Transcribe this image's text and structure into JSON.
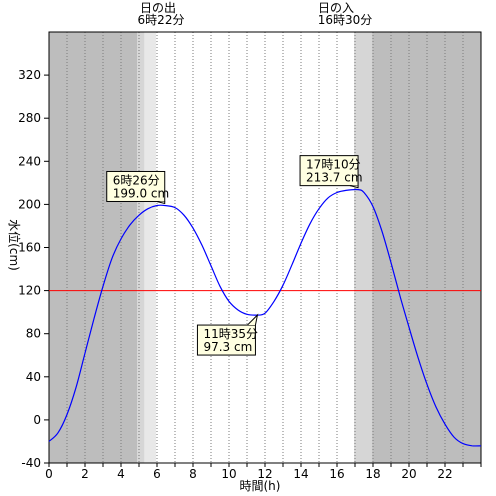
{
  "chart_data": {
    "type": "line",
    "xlabel": "時間(h)",
    "ylabel": "水位(cm)",
    "xlim": [
      0,
      24
    ],
    "ylim": [
      -40,
      360
    ],
    "xticks": [
      0,
      2,
      4,
      6,
      8,
      10,
      12,
      14,
      16,
      18,
      20,
      22
    ],
    "yticks": [
      -40,
      0,
      40,
      80,
      120,
      160,
      200,
      240,
      280,
      320
    ],
    "grid": "vertical dotted every 1 h",
    "colors": {
      "night": "#bdbdbd",
      "twilight_outer": "#d6d6d6",
      "twilight_inner": "#e8e8e8",
      "day": "#ffffff",
      "tide_line": "#0000ff",
      "reference_line": "#ff0000",
      "callout_fill": "#ffffe1"
    },
    "sunrise": {
      "title": "日の出",
      "time_label": "6時22分",
      "hour": 6.367
    },
    "sunset": {
      "title": "日の入",
      "time_label": "16時30分",
      "hour": 16.5
    },
    "twilight_bands": [
      {
        "start": 4.9,
        "end": 5.3,
        "shade": "outer"
      },
      {
        "start": 5.3,
        "end": 5.95,
        "shade": "inner"
      },
      {
        "start": 16.95,
        "end": 17.95,
        "shade": "outer"
      }
    ],
    "reference_line": {
      "y": 120
    },
    "series": [
      {
        "x": [
          0,
          0.5,
          1,
          1.5,
          2,
          2.5,
          3,
          3.5,
          4,
          4.5,
          5,
          5.5,
          6,
          6.43,
          7,
          7.5,
          8,
          8.5,
          9,
          9.5,
          10,
          10.5,
          11,
          11.58,
          12,
          12.5,
          13,
          13.5,
          14,
          14.5,
          15,
          15.5,
          16,
          16.5,
          17.17,
          17.5,
          18,
          18.5,
          19,
          19.5,
          20,
          20.5,
          21,
          21.5,
          22,
          22.5,
          23,
          23.5,
          24
        ],
        "y": [
          -20,
          -12,
          5,
          30,
          62,
          94,
          124,
          150,
          168,
          181,
          190,
          196,
          199,
          199,
          197,
          190,
          178,
          162,
          143,
          124,
          110,
          102,
          98,
          97.3,
          99,
          110,
          125,
          144,
          164,
          182,
          196,
          206,
          211,
          213,
          213.7,
          211,
          198,
          175,
          146,
          115,
          86,
          58,
          33,
          12,
          -4,
          -16,
          -22,
          -24,
          -24
        ]
      }
    ],
    "annotations": [
      {
        "label_time": "6時26分",
        "label_value": "199.0 cm",
        "x": 6.43,
        "y": 199.0
      },
      {
        "label_time": "11時35分",
        "label_value": "97.3 cm",
        "x": 11.58,
        "y": 97.3
      },
      {
        "label_time": "17時10分",
        "label_value": "213.7 cm",
        "x": 17.17,
        "y": 213.7
      }
    ]
  }
}
